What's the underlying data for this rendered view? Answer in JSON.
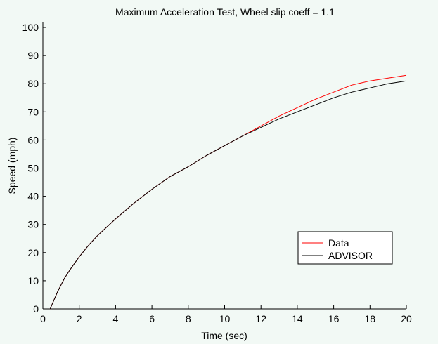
{
  "chart_data": {
    "type": "line",
    "title": "Maximum Acceleration Test, Wheel slip coeff = 1.1",
    "xlabel": "Time (sec)",
    "ylabel": "Speed (mph)",
    "xlim": [
      0,
      20
    ],
    "ylim": [
      0,
      102
    ],
    "x_ticks": [
      "0",
      "2",
      "4",
      "6",
      "8",
      "10",
      "12",
      "14",
      "16",
      "18",
      "20"
    ],
    "y_ticks": [
      "0",
      "10",
      "20",
      "30",
      "40",
      "50",
      "60",
      "70",
      "80",
      "90",
      "100"
    ],
    "grid": false,
    "legend_position": "bottom-right",
    "series": [
      {
        "name": "Data",
        "color": "#ff0000",
        "x": [
          0.4,
          0.6,
          0.8,
          1,
          1.2,
          1.5,
          2,
          2.5,
          3,
          3.5,
          4,
          5,
          6,
          7,
          8,
          9,
          10,
          11,
          12,
          13,
          14,
          15,
          16,
          17,
          18,
          19,
          20
        ],
        "y": [
          0,
          3,
          6,
          8.5,
          11,
          14,
          18.5,
          22.5,
          26,
          29,
          32,
          37.5,
          42.5,
          47,
          50.5,
          54.5,
          58,
          61.5,
          65,
          68.5,
          71.5,
          74.5,
          77,
          79.5,
          81,
          82,
          83
        ]
      },
      {
        "name": "ADVISOR",
        "color": "#000000",
        "x": [
          0.4,
          0.6,
          0.8,
          1,
          1.2,
          1.5,
          2,
          2.5,
          3,
          3.5,
          4,
          5,
          6,
          7,
          8,
          9,
          10,
          11,
          12,
          13,
          14,
          15,
          16,
          17,
          18,
          19,
          20
        ],
        "y": [
          0,
          3,
          6,
          8.5,
          11,
          14,
          18.5,
          22.5,
          26,
          29,
          32,
          37.5,
          42.5,
          47,
          50.5,
          54.5,
          58,
          61.5,
          64.5,
          67.5,
          70,
          72.5,
          75,
          77,
          78.5,
          80,
          81
        ]
      }
    ]
  }
}
